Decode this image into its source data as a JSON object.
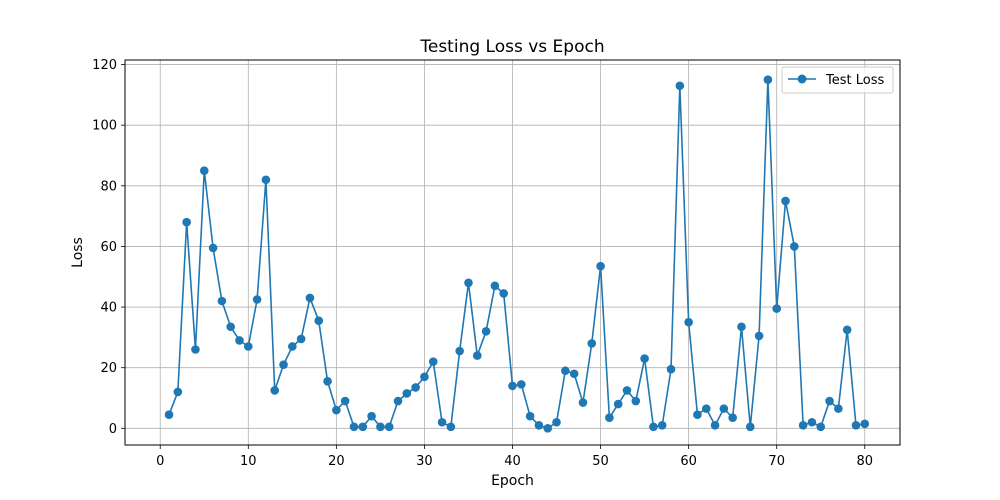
{
  "chart_data": {
    "type": "line",
    "title": "Testing Loss vs Epoch",
    "xlabel": "Epoch",
    "ylabel": "Loss",
    "xlim": [
      -4,
      84
    ],
    "ylim": [
      -5.5,
      121.5
    ],
    "xticks": [
      0,
      10,
      20,
      30,
      40,
      50,
      60,
      70,
      80
    ],
    "yticks": [
      0,
      20,
      40,
      60,
      80,
      100,
      120
    ],
    "grid": true,
    "legend_position": "top-right",
    "series": [
      {
        "name": "Test Loss",
        "color": "#1f77b4",
        "marker": "circle",
        "x": [
          1,
          2,
          3,
          4,
          5,
          6,
          7,
          8,
          9,
          10,
          11,
          12,
          13,
          14,
          15,
          16,
          17,
          18,
          19,
          20,
          21,
          22,
          23,
          24,
          25,
          26,
          27,
          28,
          29,
          30,
          31,
          32,
          33,
          34,
          35,
          36,
          37,
          38,
          39,
          40,
          41,
          42,
          43,
          44,
          45,
          46,
          47,
          48,
          49,
          50,
          51,
          52,
          53,
          54,
          55,
          56,
          57,
          58,
          59,
          60,
          61,
          62,
          63,
          64,
          65,
          66,
          67,
          68,
          69,
          70,
          71,
          72,
          73,
          74,
          75,
          76,
          77,
          78,
          79,
          80
        ],
        "values": [
          4.5,
          12,
          68,
          26,
          85,
          59.5,
          42,
          33.5,
          29,
          27,
          42.5,
          82,
          12.5,
          21,
          27,
          29.5,
          43,
          35.5,
          15.5,
          6,
          9,
          0.5,
          0.5,
          4,
          0.5,
          0.5,
          9,
          11.5,
          13.5,
          17,
          22,
          2,
          0.5,
          25.5,
          48,
          24,
          32,
          47,
          44.5,
          14,
          14.5,
          4,
          1,
          0,
          2,
          19,
          18,
          8.5,
          28,
          53.5,
          3.5,
          8,
          12.5,
          9,
          23,
          0.5,
          1,
          19.5,
          113,
          35,
          4.5,
          6.5,
          1,
          6.5,
          3.5,
          33.5,
          0.5,
          30.5,
          115,
          39.5,
          75,
          60,
          1,
          2,
          0.5,
          9,
          6.5,
          32.5,
          1,
          1.5
        ]
      }
    ]
  }
}
